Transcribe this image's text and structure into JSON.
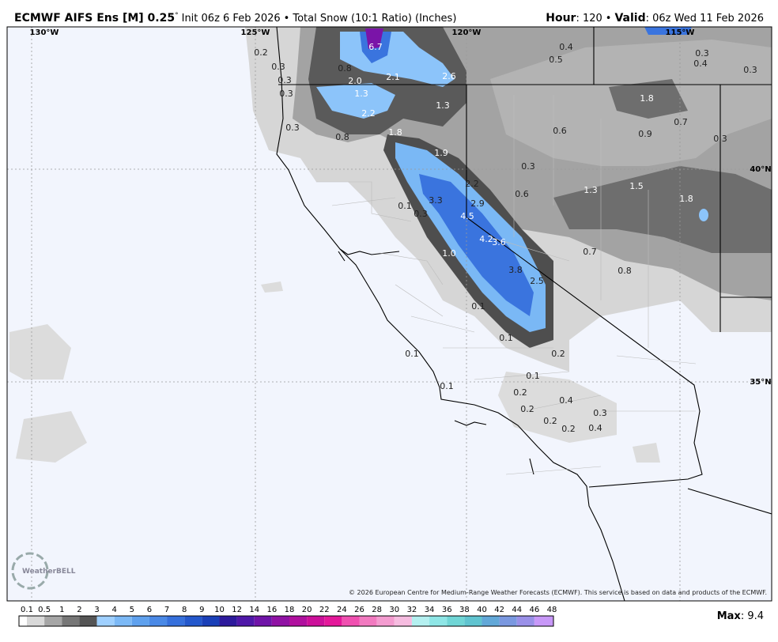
{
  "header": {
    "title": "ECMWF AIFS Ens [M] 0.25",
    "degree": "°",
    "init": "Init 06z 6 Feb 2026",
    "bullet": "•",
    "product": "Total Snow (10:1 Ratio) (Inches)",
    "hour_label": "Hour",
    "hour_value": ": 120",
    "valid_label": "Valid",
    "valid_value": ": 06z Wed 11 Feb 2026"
  },
  "map": {
    "lon_labels": [
      "130°W",
      "125°W",
      "120°W",
      "115°W"
    ],
    "lat_labels": [
      "40°N",
      "35°N"
    ],
    "point_labels": [
      "0.2",
      "0.3",
      "0.3",
      "0.3",
      "0.3",
      "0.8",
      "2.0",
      "6.7",
      "2.1",
      "2.6",
      "1.3",
      "2.2",
      "0.8",
      "1.3",
      "1.8",
      "1.9",
      "0.4",
      "0.5",
      "0.3",
      "0.4",
      "0.3",
      "1.8",
      "0.7",
      "0.6",
      "0.9",
      "0.3",
      "0.3",
      "2.2",
      "0.6",
      "1.3",
      "1.5",
      "1.8",
      "3.3",
      "2.9",
      "0.1",
      "0.3",
      "4.5",
      "4.2",
      "3.6",
      "1.0",
      "0.7",
      "3.8",
      "0.8",
      "2.5",
      "0.1",
      "0.1",
      "0.2",
      "0.1",
      "0.1",
      "0.1",
      "0.2",
      "0.4",
      "0.3",
      "0.2",
      "0.2",
      "0.2",
      "0.4"
    ],
    "copyright": "© 2026 European Centre for Medium-Range Weather Forecasts (ECMWF). This service is based on data and products of the ECMWF.",
    "logo": "WeatherBELL"
  },
  "colorbar": {
    "labels": [
      "0.1",
      "0.5",
      "1",
      "2",
      "3",
      "4",
      "5",
      "6",
      "7",
      "8",
      "9",
      "10",
      "12",
      "14",
      "16",
      "18",
      "20",
      "22",
      "24",
      "26",
      "28",
      "30",
      "32",
      "34",
      "36",
      "38",
      "40",
      "42",
      "44",
      "46",
      "48"
    ],
    "colors": [
      "#ffffff",
      "#d9d9d9",
      "#a6a6a6",
      "#777777",
      "#555555",
      "#9fd0ff",
      "#7cb9f6",
      "#5fa1ee",
      "#4a89e6",
      "#3670dc",
      "#2458cc",
      "#1a40b8",
      "#2d1a9c",
      "#4f18a8",
      "#7014a8",
      "#9012a4",
      "#b0109e",
      "#cc109a",
      "#e4189a",
      "#f050b0",
      "#f27ac0",
      "#f49cd0",
      "#f6bce0",
      "#b4f0f0",
      "#8ee6e6",
      "#70d6d6",
      "#60c4d0",
      "#62a8d8",
      "#7a98e0",
      "#9a90e8",
      "#c898f8"
    ]
  },
  "footer": {
    "max_label": "Max",
    "max_value": ": 9.4"
  }
}
